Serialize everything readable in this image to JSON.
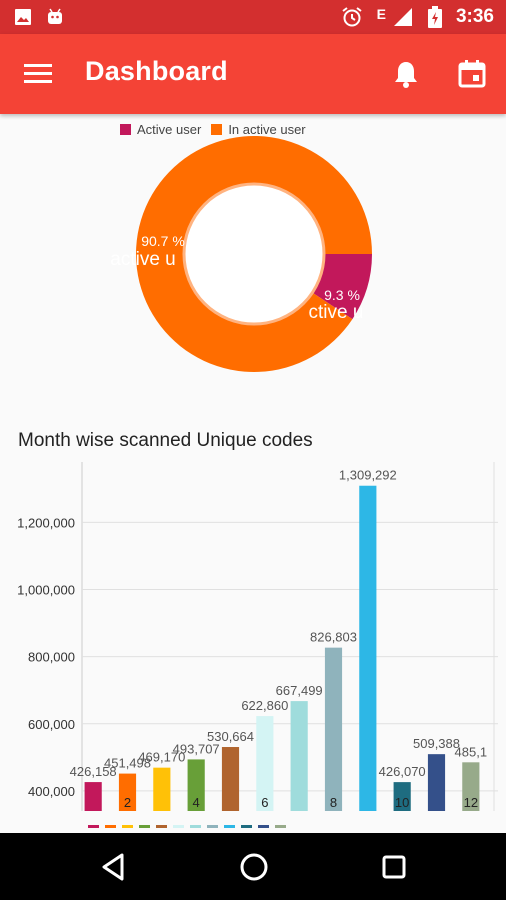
{
  "status_bar": {
    "time": "3:36",
    "network": "E"
  },
  "app_bar": {
    "title": "Dashboard"
  },
  "donut": {
    "legend": [
      {
        "label": "Active user",
        "color": "#c2185b"
      },
      {
        "label": "In active user",
        "color": "#ff6d00"
      }
    ],
    "slices": [
      {
        "name": "Active user",
        "value": 9.3,
        "percent_label": "9.3 %",
        "color": "#c2185b"
      },
      {
        "name": "In active user",
        "value": 90.7,
        "percent_label": "90.7 %",
        "color": "#ff6d00"
      }
    ],
    "visible_labels": [
      "ctive u",
      "active u"
    ]
  },
  "bar_chart_title": "Month wise scanned Unique codes",
  "chart_data": {
    "type": "bar",
    "title": "Month wise scanned Unique codes",
    "yticks": [
      "400,000",
      "600,000",
      "800,000",
      "1,000,000",
      "1,200,000"
    ],
    "ytick_values": [
      400000,
      600000,
      800000,
      1000000,
      1200000
    ],
    "ylim_visible": [
      340000,
      1380000
    ],
    "bars": [
      {
        "value": 426158,
        "label": "426,158",
        "inner": "",
        "color": "#c2185b"
      },
      {
        "value": 451498,
        "label": "451,498",
        "inner": "2",
        "color": "#ff6d00"
      },
      {
        "value": 469170,
        "label": "469,170",
        "inner": "",
        "color": "#ffc107"
      },
      {
        "value": 493707,
        "label": "493,707",
        "inner": "4",
        "color": "#689f38"
      },
      {
        "value": 530664,
        "label": "530,664",
        "inner": "",
        "color": "#b0642e"
      },
      {
        "value": 622860,
        "label": "622,860",
        "inner": "6",
        "color": "#d4f4f4"
      },
      {
        "value": 667499,
        "label": "667,499",
        "inner": "",
        "color": "#9fdcdc"
      },
      {
        "value": 826803,
        "label": "826,803",
        "inner": "8",
        "color": "#8fb3bc"
      },
      {
        "value": 1309292,
        "label": "1,309,292",
        "inner": "",
        "color": "#2db7e6"
      },
      {
        "value": 426070,
        "label": "426,070",
        "inner": "10",
        "color": "#1e6c80"
      },
      {
        "value": 509388,
        "label": "509,388",
        "inner": "",
        "color": "#34508a"
      },
      {
        "value": 485100,
        "label": "485,1",
        "inner": "12",
        "color": "#97aa8a"
      }
    ],
    "grid": true
  }
}
